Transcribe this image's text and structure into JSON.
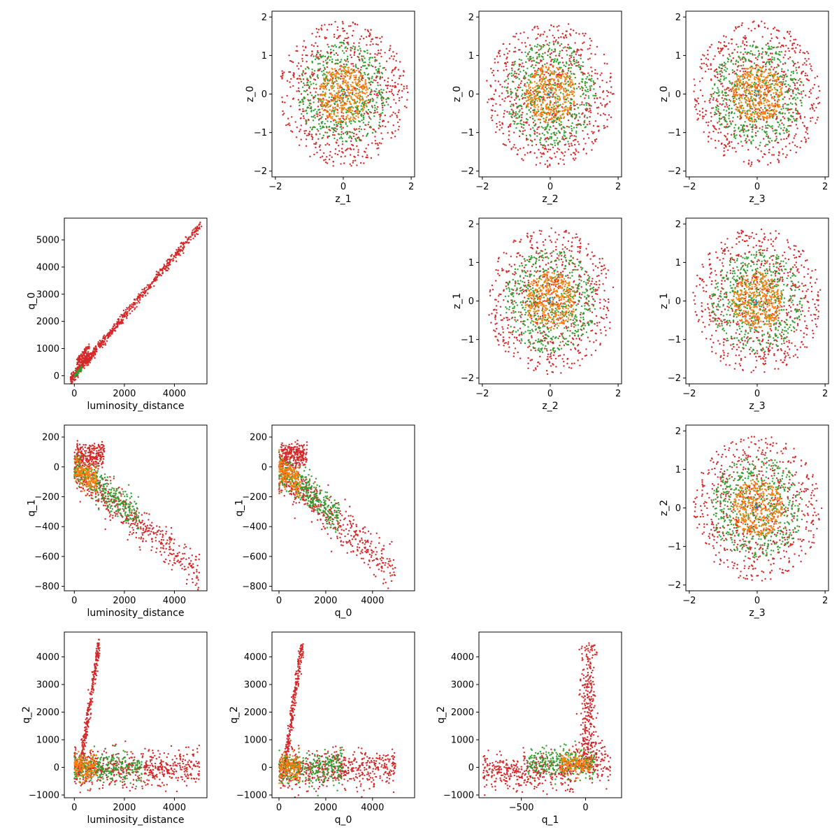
{
  "chart_data": {
    "type": "scatter",
    "title": "",
    "grid": false,
    "legend": "none",
    "series_colors": [
      "#1f77b4",
      "#ff7f0e",
      "#2ca02c",
      "#d62728"
    ],
    "panels": [
      {
        "id": "p_0_1",
        "row": 0,
        "col": 1,
        "xlabel": "z_1",
        "ylabel": "z_0",
        "xlim": [
          -2.1,
          2.1
        ],
        "ylim": [
          -2.15,
          2.15
        ],
        "xticks": [
          -2,
          0,
          2
        ],
        "yticks": [
          -2,
          -1,
          0,
          1,
          2
        ],
        "xtick_labels": [
          "−2",
          "0",
          "2"
        ],
        "ytick_labels": [
          "−2",
          "−1",
          "0",
          "1",
          "2"
        ],
        "pattern": "disk"
      },
      {
        "id": "p_0_2",
        "row": 0,
        "col": 2,
        "xlabel": "z_2",
        "ylabel": "z_0",
        "xlim": [
          -2.1,
          2.1
        ],
        "ylim": [
          -2.15,
          2.15
        ],
        "xticks": [
          -2,
          0,
          2
        ],
        "yticks": [
          -2,
          -1,
          0,
          1,
          2
        ],
        "xtick_labels": [
          "−2",
          "0",
          "2"
        ],
        "ytick_labels": [
          "−2",
          "−1",
          "0",
          "1",
          "2"
        ],
        "pattern": "disk"
      },
      {
        "id": "p_0_3",
        "row": 0,
        "col": 3,
        "xlabel": "z_3",
        "ylabel": "z_0",
        "xlim": [
          -2.1,
          2.1
        ],
        "ylim": [
          -2.15,
          2.15
        ],
        "xticks": [
          -2,
          0,
          2
        ],
        "yticks": [
          -2,
          -1,
          0,
          1,
          2
        ],
        "xtick_labels": [
          "−2",
          "0",
          "2"
        ],
        "ytick_labels": [
          "−2",
          "−1",
          "0",
          "1",
          "2"
        ],
        "pattern": "disk"
      },
      {
        "id": "p_1_0",
        "row": 1,
        "col": 0,
        "xlabel": "luminosity_distance",
        "ylabel": "q_0",
        "xlim": [
          -400,
          5300
        ],
        "ylim": [
          -300,
          5800
        ],
        "xticks": [
          0,
          2000,
          4000
        ],
        "yticks": [
          0,
          1000,
          2000,
          3000,
          4000,
          5000
        ],
        "xtick_labels": [
          "0",
          "2000",
          "4000"
        ],
        "ytick_labels": [
          "0",
          "1000",
          "2000",
          "3000",
          "4000",
          "5000"
        ],
        "pattern": "linear"
      },
      {
        "id": "p_1_2",
        "row": 1,
        "col": 2,
        "xlabel": "z_2",
        "ylabel": "z_1",
        "xlim": [
          -2.1,
          2.1
        ],
        "ylim": [
          -2.15,
          2.15
        ],
        "xticks": [
          -2,
          0,
          2
        ],
        "yticks": [
          -2,
          -1,
          0,
          1,
          2
        ],
        "xtick_labels": [
          "−2",
          "0",
          "2"
        ],
        "ytick_labels": [
          "−2",
          "−1",
          "0",
          "1",
          "2"
        ],
        "pattern": "disk"
      },
      {
        "id": "p_1_3",
        "row": 1,
        "col": 3,
        "xlabel": "z_3",
        "ylabel": "z_1",
        "xlim": [
          -2.1,
          2.1
        ],
        "ylim": [
          -2.15,
          2.15
        ],
        "xticks": [
          -2,
          0,
          2
        ],
        "yticks": [
          -2,
          -1,
          0,
          1,
          2
        ],
        "xtick_labels": [
          "−2",
          "0",
          "2"
        ],
        "ytick_labels": [
          "−2",
          "−1",
          "0",
          "1",
          "2"
        ],
        "pattern": "disk"
      },
      {
        "id": "p_2_0",
        "row": 2,
        "col": 0,
        "xlabel": "luminosity_distance",
        "ylabel": "q_1",
        "xlim": [
          -400,
          5300
        ],
        "ylim": [
          -830,
          280
        ],
        "xticks": [
          0,
          2000,
          4000
        ],
        "yticks": [
          -800,
          -600,
          -400,
          -200,
          0,
          200
        ],
        "xtick_labels": [
          "0",
          "2000",
          "4000"
        ],
        "ytick_labels": [
          "−800",
          "−600",
          "−400",
          "−200",
          "0",
          "200"
        ],
        "pattern": "neg-linear"
      },
      {
        "id": "p_2_1",
        "row": 2,
        "col": 1,
        "xlabel": "q_0",
        "ylabel": "q_1",
        "xlim": [
          -300,
          5800
        ],
        "ylim": [
          -830,
          280
        ],
        "xticks": [
          0,
          2000,
          4000
        ],
        "yticks": [
          -800,
          -600,
          -400,
          -200,
          0,
          200
        ],
        "xtick_labels": [
          "0",
          "2000",
          "4000"
        ],
        "ytick_labels": [
          "−800",
          "−600",
          "−400",
          "−200",
          "0",
          "200"
        ],
        "pattern": "neg-linear"
      },
      {
        "id": "p_2_3",
        "row": 2,
        "col": 3,
        "xlabel": "z_3",
        "ylabel": "z_2",
        "xlim": [
          -2.1,
          2.1
        ],
        "ylim": [
          -2.15,
          2.15
        ],
        "xticks": [
          -2,
          0,
          2
        ],
        "yticks": [
          -2,
          -1,
          0,
          1,
          2
        ],
        "xtick_labels": [
          "−2",
          "0",
          "2"
        ],
        "ytick_labels": [
          "−2",
          "−1",
          "0",
          "1",
          "2"
        ],
        "pattern": "disk"
      },
      {
        "id": "p_3_0",
        "row": 3,
        "col": 0,
        "xlabel": "luminosity_distance",
        "ylabel": "q_2",
        "xlim": [
          -400,
          5300
        ],
        "ylim": [
          -1100,
          4900
        ],
        "xticks": [
          0,
          2000,
          4000
        ],
        "yticks": [
          -1000,
          0,
          1000,
          2000,
          3000,
          4000
        ],
        "xtick_labels": [
          "0",
          "2000",
          "4000"
        ],
        "ytick_labels": [
          "−1000",
          "0",
          "1000",
          "2000",
          "3000",
          "4000"
        ],
        "pattern": "L-shape"
      },
      {
        "id": "p_3_1",
        "row": 3,
        "col": 1,
        "xlabel": "q_0",
        "ylabel": "q_2",
        "xlim": [
          -300,
          5800
        ],
        "ylim": [
          -1100,
          4900
        ],
        "xticks": [
          0,
          2000,
          4000
        ],
        "yticks": [
          -1000,
          0,
          1000,
          2000,
          3000,
          4000
        ],
        "xtick_labels": [
          "0",
          "2000",
          "4000"
        ],
        "ytick_labels": [
          "−1000",
          "0",
          "1000",
          "2000",
          "3000",
          "4000"
        ],
        "pattern": "L-shape"
      },
      {
        "id": "p_3_2",
        "row": 3,
        "col": 2,
        "xlabel": "q_1",
        "ylabel": "q_2",
        "xlim": [
          -830,
          280
        ],
        "ylim": [
          -1100,
          4900
        ],
        "xticks": [
          -500,
          0
        ],
        "yticks": [
          -1000,
          0,
          1000,
          2000,
          3000,
          4000
        ],
        "xtick_labels": [
          "−500",
          "0"
        ],
        "ytick_labels": [
          "−1000",
          "0",
          "1000",
          "2000",
          "3000",
          "4000"
        ],
        "pattern": "hook"
      }
    ]
  }
}
